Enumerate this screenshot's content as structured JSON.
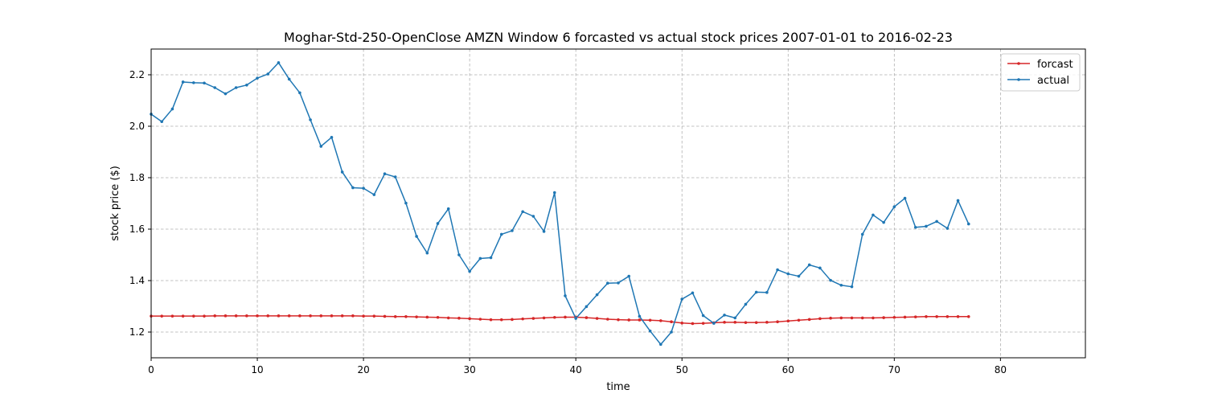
{
  "chart_data": {
    "type": "line",
    "title": "Moghar-Std-250-OpenClose AMZN Window 6 forcasted vs actual stock prices 2007-01-01 to 2016-02-23",
    "xlabel": "time",
    "ylabel": "stock price ($)",
    "xlim": [
      0,
      88
    ],
    "ylim": [
      1.1,
      2.3
    ],
    "xticks": [
      0,
      10,
      20,
      30,
      40,
      50,
      60,
      70,
      80
    ],
    "yticks": [
      1.2,
      1.4,
      1.6,
      1.8,
      2.0,
      2.2
    ],
    "grid": true,
    "legend_position": "top-right",
    "series": [
      {
        "name": "forcast",
        "color": "#d62728",
        "x": [
          0,
          1,
          2,
          3,
          4,
          5,
          6,
          7,
          8,
          9,
          10,
          11,
          12,
          13,
          14,
          15,
          16,
          17,
          18,
          19,
          20,
          21,
          22,
          23,
          24,
          25,
          26,
          27,
          28,
          29,
          30,
          31,
          32,
          33,
          34,
          35,
          36,
          37,
          38,
          39,
          40,
          41,
          42,
          43,
          44,
          45,
          46,
          47,
          48,
          49,
          50,
          51,
          52,
          53,
          54,
          55,
          56,
          57,
          58,
          59,
          60,
          61,
          62,
          63,
          64,
          65,
          66,
          67,
          68,
          69,
          70,
          71,
          72,
          73,
          74,
          75,
          76,
          77
        ],
        "values": [
          1.262,
          1.262,
          1.262,
          1.262,
          1.262,
          1.262,
          1.263,
          1.263,
          1.263,
          1.263,
          1.263,
          1.263,
          1.263,
          1.263,
          1.263,
          1.263,
          1.263,
          1.263,
          1.263,
          1.263,
          1.262,
          1.262,
          1.261,
          1.26,
          1.26,
          1.259,
          1.258,
          1.257,
          1.255,
          1.254,
          1.252,
          1.25,
          1.248,
          1.248,
          1.249,
          1.251,
          1.253,
          1.255,
          1.257,
          1.258,
          1.258,
          1.256,
          1.253,
          1.25,
          1.248,
          1.247,
          1.247,
          1.246,
          1.244,
          1.24,
          1.235,
          1.233,
          1.234,
          1.236,
          1.238,
          1.238,
          1.237,
          1.237,
          1.238,
          1.24,
          1.243,
          1.246,
          1.249,
          1.252,
          1.254,
          1.255,
          1.255,
          1.255,
          1.255,
          1.256,
          1.257,
          1.258,
          1.259,
          1.26,
          1.26,
          1.26,
          1.26,
          1.26
        ]
      },
      {
        "name": "actual",
        "color": "#1f77b4",
        "x": [
          0,
          1,
          2,
          3,
          4,
          5,
          6,
          7,
          8,
          9,
          10,
          11,
          12,
          13,
          14,
          15,
          16,
          17,
          18,
          19,
          20,
          21,
          22,
          23,
          24,
          25,
          26,
          27,
          28,
          29,
          30,
          31,
          32,
          33,
          34,
          35,
          36,
          37,
          38,
          39,
          40,
          41,
          42,
          43,
          44,
          45,
          46,
          47,
          48,
          49,
          50,
          51,
          52,
          53,
          54,
          55,
          56,
          57,
          58,
          59,
          60,
          61,
          62,
          63,
          64,
          65,
          66,
          67,
          68,
          69,
          70,
          71,
          72,
          73,
          74,
          75,
          76,
          77
        ],
        "values": [
          2.047,
          2.018,
          2.067,
          2.172,
          2.169,
          2.168,
          2.15,
          2.126,
          2.15,
          2.16,
          2.187,
          2.203,
          2.247,
          2.183,
          2.13,
          2.025,
          1.922,
          1.957,
          1.822,
          1.761,
          1.759,
          1.734,
          1.815,
          1.803,
          1.701,
          1.572,
          1.507,
          1.622,
          1.679,
          1.5,
          1.436,
          1.486,
          1.489,
          1.58,
          1.594,
          1.668,
          1.65,
          1.591,
          1.742,
          1.341,
          1.253,
          1.299,
          1.345,
          1.39,
          1.391,
          1.417,
          1.261,
          1.204,
          1.152,
          1.2,
          1.328,
          1.352,
          1.264,
          1.234,
          1.266,
          1.255,
          1.308,
          1.355,
          1.354,
          1.442,
          1.426,
          1.417,
          1.461,
          1.449,
          1.401,
          1.382,
          1.376,
          1.58,
          1.655,
          1.626,
          1.687,
          1.72,
          1.607,
          1.611,
          1.63,
          1.603,
          1.711,
          1.62
        ]
      }
    ]
  }
}
